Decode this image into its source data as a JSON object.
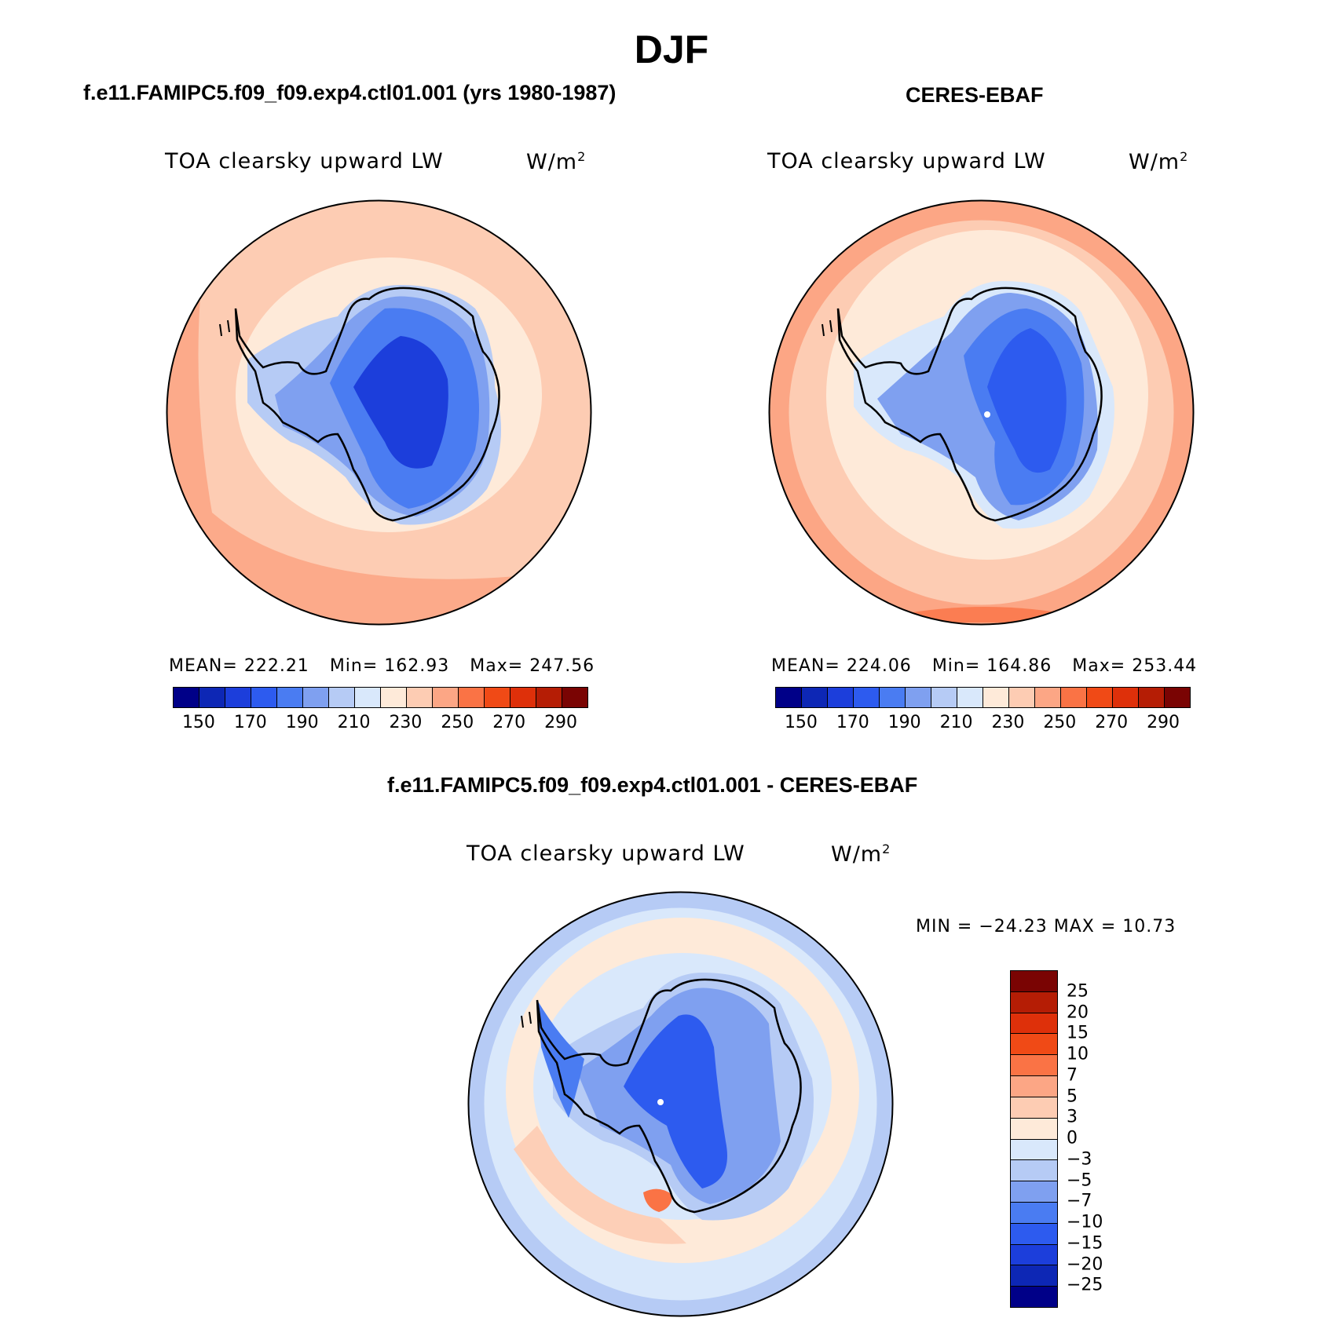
{
  "figure": {
    "title": "DJF"
  },
  "panels": [
    {
      "id": "model",
      "case_title": "f.e11.FAMIPC5.f09_f09.exp4.ctl01.001 (yrs 1980-1987)",
      "variable": "TOA clearsky upward LW",
      "units_base": "W/m",
      "units_exp": "2",
      "stats": {
        "mean_label": "MEAN=",
        "mean": "222.21",
        "min_label": "Min=",
        "min": "162.93",
        "max_label": "Max=",
        "max": "247.56"
      },
      "colorbar": {
        "colors": [
          "#000088",
          "#0d27b5",
          "#1c3edb",
          "#2d5bef",
          "#4a7cf2",
          "#7fa0f0",
          "#b6cbf5",
          "#d9e8fb",
          "#feead9",
          "#fdccb3",
          "#fca685",
          "#fa7345",
          "#f04a16",
          "#de300a",
          "#b51d05",
          "#7a0403"
        ],
        "labels": [
          "150",
          "170",
          "190",
          "210",
          "230",
          "250",
          "270",
          "290"
        ]
      },
      "field_description_colors": {
        "ocean": "#fdccb3",
        "ocean_outer": "#fca685",
        "sea_ice": "#feead9",
        "coast": "#b6cbf5",
        "interior": "#2d5bef",
        "plateau": "#1c3edb"
      }
    },
    {
      "id": "obs",
      "case_title": "CERES-EBAF",
      "variable": "TOA clearsky upward LW",
      "units_base": "W/m",
      "units_exp": "2",
      "stats": {
        "mean_label": "MEAN=",
        "mean": "224.06",
        "min_label": "Min=",
        "min": "164.86",
        "max_label": "Max=",
        "max": "253.44"
      },
      "colorbar": {
        "colors": [
          "#000088",
          "#0d27b5",
          "#1c3edb",
          "#2d5bef",
          "#4a7cf2",
          "#7fa0f0",
          "#b6cbf5",
          "#d9e8fb",
          "#feead9",
          "#fdccb3",
          "#fca685",
          "#fa7345",
          "#f04a16",
          "#de300a",
          "#b51d05",
          "#7a0403"
        ],
        "labels": [
          "150",
          "170",
          "190",
          "210",
          "230",
          "250",
          "270",
          "290"
        ]
      },
      "field_description_colors": {
        "ocean": "#fdccb3",
        "ocean_outer": "#fca685",
        "sea_ice": "#feead9",
        "coast": "#b6cbf5",
        "interior": "#4a7cf2",
        "plateau": "#2d5bef"
      }
    },
    {
      "id": "diff",
      "case_title": "f.e11.FAMIPC5.f09_f09.exp4.ctl01.001 - CERES-EBAF",
      "variable": "TOA clearsky upward LW",
      "units_base": "W/m",
      "units_exp": "2",
      "stats": {
        "text": "MIN = −24.23 MAX =  10.73"
      },
      "colorbar": {
        "colors": [
          "#7a0403",
          "#b51d05",
          "#de300a",
          "#f04a16",
          "#fa7345",
          "#fca685",
          "#fdccb3",
          "#feead9",
          "#d9e8fb",
          "#b6cbf5",
          "#7fa0f0",
          "#4a7cf2",
          "#2d5bef",
          "#1c3edb",
          "#0d27b5",
          "#000088"
        ],
        "labels": [
          "25",
          "20",
          "15",
          "10",
          "7",
          "5",
          "3",
          "0",
          "−3",
          "−5",
          "−7",
          "−10",
          "−15",
          "−20",
          "−25"
        ]
      },
      "field_description_colors": {
        "ocean": "#d9e8fb",
        "ring": "#feead9",
        "outer": "#b6cbf5",
        "continent": "#7fa0f0",
        "interior": "#2d5bef",
        "hotspot": "#fa7345"
      }
    }
  ]
}
